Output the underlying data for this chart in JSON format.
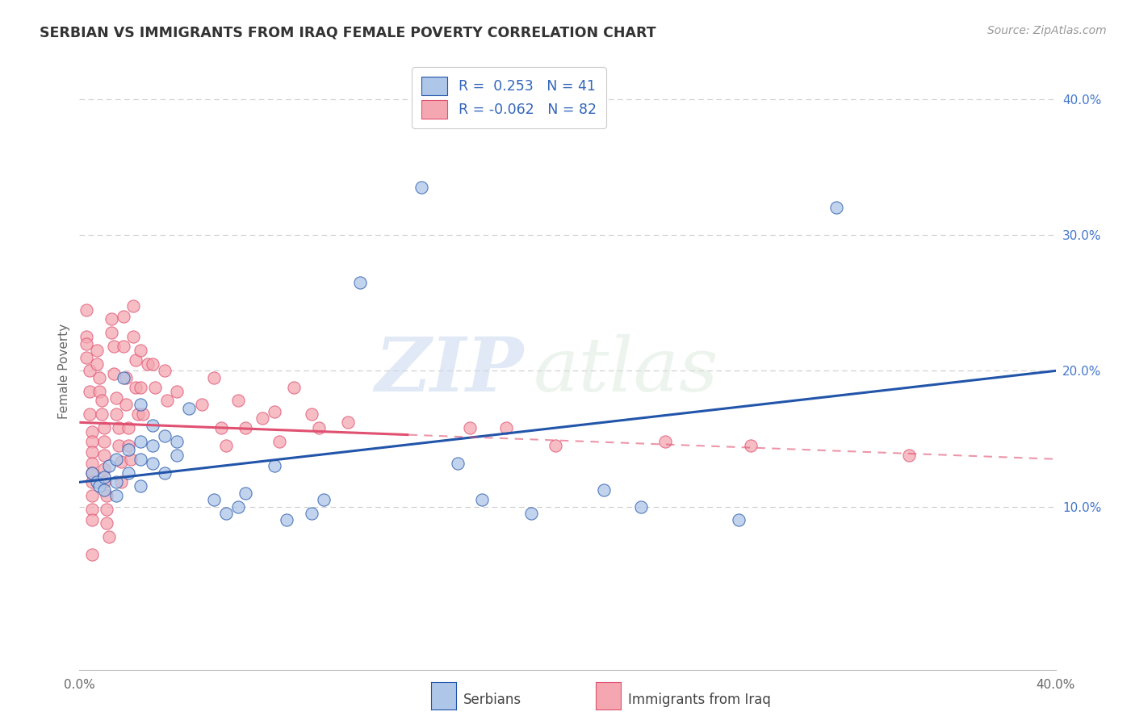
{
  "title": "SERBIAN VS IMMIGRANTS FROM IRAQ FEMALE POVERTY CORRELATION CHART",
  "source": "Source: ZipAtlas.com",
  "ylabel": "Female Poverty",
  "xlim": [
    0.0,
    0.4
  ],
  "ylim": [
    -0.02,
    0.42
  ],
  "watermark_zip": "ZIP",
  "watermark_atlas": "atlas",
  "legend_serbian_r": "R =  0.253",
  "legend_serbian_n": "N = 41",
  "legend_iraq_r": "R = -0.062",
  "legend_iraq_n": "N = 82",
  "serbian_color": "#aec6e8",
  "iraq_color": "#f4a7b0",
  "trendline_serbian_color": "#2255aa",
  "trendline_iraq_color": "#e05070",
  "serbian_trend_y0": 0.118,
  "serbian_trend_y1": 0.2,
  "iraq_trend_y0": 0.162,
  "iraq_trend_y1": 0.135,
  "iraq_trend_cross_x": 0.135,
  "serbian_points": [
    [
      0.005,
      0.125
    ],
    [
      0.007,
      0.118
    ],
    [
      0.008,
      0.115
    ],
    [
      0.01,
      0.122
    ],
    [
      0.01,
      0.112
    ],
    [
      0.012,
      0.13
    ],
    [
      0.015,
      0.135
    ],
    [
      0.015,
      0.118
    ],
    [
      0.015,
      0.108
    ],
    [
      0.018,
      0.195
    ],
    [
      0.02,
      0.142
    ],
    [
      0.02,
      0.125
    ],
    [
      0.025,
      0.175
    ],
    [
      0.025,
      0.148
    ],
    [
      0.025,
      0.135
    ],
    [
      0.025,
      0.115
    ],
    [
      0.03,
      0.16
    ],
    [
      0.03,
      0.145
    ],
    [
      0.03,
      0.132
    ],
    [
      0.035,
      0.152
    ],
    [
      0.035,
      0.125
    ],
    [
      0.04,
      0.148
    ],
    [
      0.04,
      0.138
    ],
    [
      0.045,
      0.172
    ],
    [
      0.055,
      0.105
    ],
    [
      0.06,
      0.095
    ],
    [
      0.065,
      0.1
    ],
    [
      0.068,
      0.11
    ],
    [
      0.08,
      0.13
    ],
    [
      0.085,
      0.09
    ],
    [
      0.095,
      0.095
    ],
    [
      0.1,
      0.105
    ],
    [
      0.115,
      0.265
    ],
    [
      0.14,
      0.335
    ],
    [
      0.155,
      0.132
    ],
    [
      0.165,
      0.105
    ],
    [
      0.185,
      0.095
    ],
    [
      0.215,
      0.112
    ],
    [
      0.23,
      0.1
    ],
    [
      0.27,
      0.09
    ],
    [
      0.31,
      0.32
    ]
  ],
  "iraq_points": [
    [
      0.003,
      0.245
    ],
    [
      0.003,
      0.225
    ],
    [
      0.003,
      0.22
    ],
    [
      0.003,
      0.21
    ],
    [
      0.004,
      0.2
    ],
    [
      0.004,
      0.185
    ],
    [
      0.004,
      0.168
    ],
    [
      0.005,
      0.155
    ],
    [
      0.005,
      0.148
    ],
    [
      0.005,
      0.14
    ],
    [
      0.005,
      0.132
    ],
    [
      0.005,
      0.125
    ],
    [
      0.005,
      0.118
    ],
    [
      0.005,
      0.108
    ],
    [
      0.005,
      0.098
    ],
    [
      0.005,
      0.09
    ],
    [
      0.005,
      0.065
    ],
    [
      0.007,
      0.215
    ],
    [
      0.007,
      0.205
    ],
    [
      0.008,
      0.195
    ],
    [
      0.008,
      0.185
    ],
    [
      0.009,
      0.178
    ],
    [
      0.009,
      0.168
    ],
    [
      0.01,
      0.158
    ],
    [
      0.01,
      0.148
    ],
    [
      0.01,
      0.138
    ],
    [
      0.01,
      0.128
    ],
    [
      0.01,
      0.118
    ],
    [
      0.011,
      0.108
    ],
    [
      0.011,
      0.098
    ],
    [
      0.011,
      0.088
    ],
    [
      0.012,
      0.078
    ],
    [
      0.013,
      0.238
    ],
    [
      0.013,
      0.228
    ],
    [
      0.014,
      0.218
    ],
    [
      0.014,
      0.198
    ],
    [
      0.015,
      0.18
    ],
    [
      0.015,
      0.168
    ],
    [
      0.016,
      0.158
    ],
    [
      0.016,
      0.145
    ],
    [
      0.017,
      0.133
    ],
    [
      0.017,
      0.118
    ],
    [
      0.018,
      0.24
    ],
    [
      0.018,
      0.218
    ],
    [
      0.019,
      0.195
    ],
    [
      0.019,
      0.175
    ],
    [
      0.02,
      0.158
    ],
    [
      0.02,
      0.145
    ],
    [
      0.021,
      0.135
    ],
    [
      0.022,
      0.248
    ],
    [
      0.022,
      0.225
    ],
    [
      0.023,
      0.208
    ],
    [
      0.023,
      0.188
    ],
    [
      0.024,
      0.168
    ],
    [
      0.025,
      0.215
    ],
    [
      0.025,
      0.188
    ],
    [
      0.026,
      0.168
    ],
    [
      0.028,
      0.205
    ],
    [
      0.03,
      0.205
    ],
    [
      0.031,
      0.188
    ],
    [
      0.035,
      0.2
    ],
    [
      0.036,
      0.178
    ],
    [
      0.04,
      0.185
    ],
    [
      0.05,
      0.175
    ],
    [
      0.055,
      0.195
    ],
    [
      0.058,
      0.158
    ],
    [
      0.06,
      0.145
    ],
    [
      0.065,
      0.178
    ],
    [
      0.068,
      0.158
    ],
    [
      0.075,
      0.165
    ],
    [
      0.08,
      0.17
    ],
    [
      0.082,
      0.148
    ],
    [
      0.088,
      0.188
    ],
    [
      0.095,
      0.168
    ],
    [
      0.098,
      0.158
    ],
    [
      0.11,
      0.162
    ],
    [
      0.16,
      0.158
    ],
    [
      0.175,
      0.158
    ],
    [
      0.195,
      0.145
    ],
    [
      0.24,
      0.148
    ],
    [
      0.275,
      0.145
    ],
    [
      0.34,
      0.138
    ]
  ]
}
